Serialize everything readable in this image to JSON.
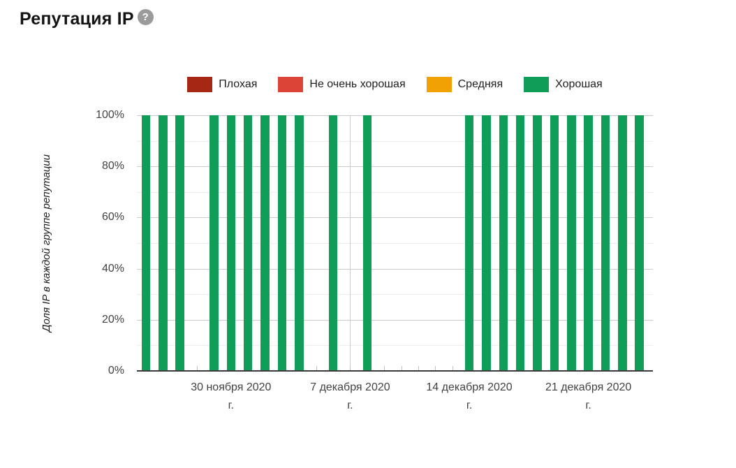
{
  "title": "Репутация IP",
  "help_icon_glyph": "?",
  "chart_data": {
    "type": "bar",
    "title": "Репутация IP",
    "xlabel": "",
    "ylabel": "Доля IP в каждой группе репутации",
    "ylim": [
      0,
      100
    ],
    "y_unit": "%",
    "y_major_ticks": [
      0,
      20,
      40,
      60,
      80,
      100
    ],
    "y_minor_ticks": [
      10,
      30,
      50,
      70,
      90
    ],
    "y_tick_labels": [
      "0%",
      "20%",
      "40%",
      "60%",
      "80%",
      "100%"
    ],
    "grid": true,
    "legend_position": "top",
    "bar_mode": "stacked-percent",
    "series_meta": [
      {
        "key": "bad",
        "name": "Плохая",
        "color": "#a52714"
      },
      {
        "key": "not-very-good",
        "name": "Не очень хорошая",
        "color": "#db4437"
      },
      {
        "key": "medium",
        "name": "Средняя",
        "color": "#f2a104"
      },
      {
        "key": "good",
        "name": "Хорошая",
        "color": "#0f9d58"
      }
    ],
    "x": [
      "2020-11-25",
      "2020-11-26",
      "2020-11-27",
      "2020-11-28",
      "2020-11-29",
      "2020-11-30",
      "2020-12-01",
      "2020-12-02",
      "2020-12-03",
      "2020-12-04",
      "2020-12-05",
      "2020-12-06",
      "2020-12-07",
      "2020-12-08",
      "2020-12-09",
      "2020-12-10",
      "2020-12-11",
      "2020-12-12",
      "2020-12-13",
      "2020-12-14",
      "2020-12-15",
      "2020-12-16",
      "2020-12-17",
      "2020-12-18",
      "2020-12-19",
      "2020-12-20",
      "2020-12-21",
      "2020-12-22",
      "2020-12-23",
      "2020-12-24"
    ],
    "x_tick_dates": [
      "2020-11-30",
      "2020-12-07",
      "2020-12-14",
      "2020-12-21"
    ],
    "x_tick_labels": [
      "30 ноября 2020 г.",
      "7 декабря 2020 г.",
      "14 декабря 2020 г.",
      "21 декабря 2020 г."
    ],
    "series": [
      {
        "name": "Плохая",
        "values": [
          0,
          0,
          0,
          null,
          0,
          0,
          0,
          0,
          0,
          0,
          null,
          0,
          null,
          0,
          null,
          null,
          null,
          null,
          null,
          0,
          0,
          0,
          0,
          0,
          0,
          0,
          0,
          0,
          0,
          0
        ]
      },
      {
        "name": "Не очень хорошая",
        "values": [
          0,
          0,
          0,
          null,
          0,
          0,
          0,
          0,
          0,
          0,
          null,
          0,
          null,
          0,
          null,
          null,
          null,
          null,
          null,
          0,
          0,
          0,
          0,
          0,
          0,
          0,
          0,
          0,
          0,
          0
        ]
      },
      {
        "name": "Средняя",
        "values": [
          0,
          0,
          0,
          null,
          0,
          0,
          0,
          0,
          0,
          0,
          null,
          0,
          null,
          0,
          null,
          null,
          null,
          null,
          null,
          0,
          0,
          0,
          0,
          0,
          0,
          0,
          0,
          0,
          0,
          0
        ]
      },
      {
        "name": "Хорошая",
        "values": [
          100,
          100,
          100,
          null,
          100,
          100,
          100,
          100,
          100,
          100,
          null,
          100,
          null,
          100,
          null,
          null,
          null,
          null,
          null,
          100,
          100,
          100,
          100,
          100,
          100,
          100,
          100,
          100,
          100,
          100
        ]
      }
    ]
  }
}
